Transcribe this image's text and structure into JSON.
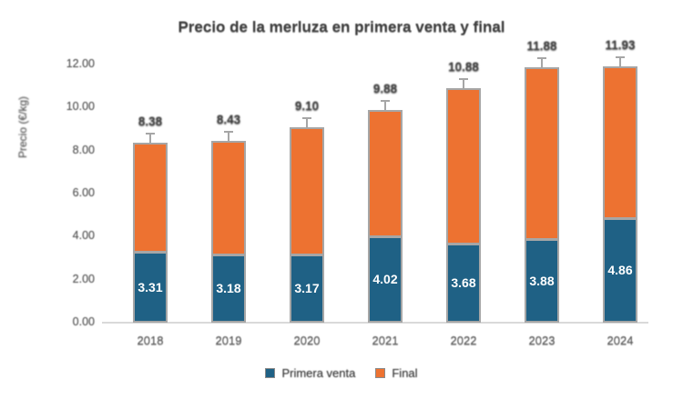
{
  "title": "Precio de la merluza en primera venta y final",
  "chart_data": {
    "type": "bar",
    "stacked": true,
    "title": "Precio de la merluza en primera venta y final",
    "categories": [
      "2018",
      "2019",
      "2020",
      "2021",
      "2022",
      "2023",
      "2024"
    ],
    "series": [
      {
        "name": "Primera venta",
        "color": "#1f6185",
        "values": [
          3.31,
          3.18,
          3.17,
          4.02,
          3.68,
          3.88,
          4.86
        ]
      },
      {
        "name": "Final",
        "color": "#ed7231",
        "values": [
          5.07,
          5.25,
          5.93,
          5.86,
          7.2,
          8.0,
          7.07
        ]
      }
    ],
    "totals": [
      8.38,
      8.43,
      9.1,
      9.88,
      10.88,
      11.88,
      11.93
    ],
    "total_labels": [
      "8.38",
      "8.43",
      "9.10",
      "9.88",
      "10.88",
      "11.88",
      "11.93"
    ],
    "segment_labels": [
      "3.31",
      "3.18",
      "3.17",
      "4.02",
      "3.68",
      "3.88",
      "4.86"
    ],
    "ylabel": "Precio (€/kg)",
    "ytick_labels": [
      "0.00",
      "2.00",
      "4.00",
      "6.00",
      "8.00",
      "10.00",
      "12.00"
    ],
    "ylim": [
      0,
      12
    ],
    "grid": false,
    "error_bars": true,
    "legend": {
      "position": "bottom",
      "items": [
        "Primera venta",
        "Final"
      ]
    }
  },
  "colors": {
    "primera_venta": "#1f6185",
    "final": "#ed7231",
    "bar_border": "#a6a6a6",
    "axis_line": "#d9d9d9",
    "tick_text": "#595959",
    "label_text": "#3c3c3c",
    "background": "#ffffff"
  }
}
